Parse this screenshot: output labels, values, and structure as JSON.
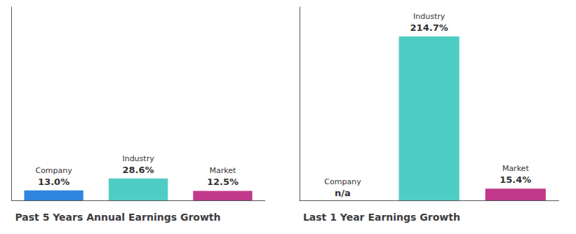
{
  "chart_data": [
    {
      "type": "bar",
      "title": "Past 5 Years Annual Earnings Growth",
      "categories": [
        "Company",
        "Industry",
        "Market"
      ],
      "values": [
        13.0,
        28.6,
        12.5
      ],
      "value_labels": [
        "13.0%",
        "28.6%",
        "12.5%"
      ],
      "colors": [
        "#2e86de",
        "#4ecdc4",
        "#c0398a"
      ],
      "ylim": [
        0,
        253.346
      ],
      "data_labels": true,
      "tick_labels": false,
      "grid": false
    },
    {
      "type": "bar",
      "title": "Last 1 Year Earnings Growth",
      "categories": [
        "Company",
        "Industry",
        "Market"
      ],
      "values": [
        null,
        214.7,
        15.4
      ],
      "value_labels": [
        "n/a",
        "214.7%",
        "15.4%"
      ],
      "colors": [
        "#2e86de",
        "#4ecdc4",
        "#c0398a"
      ],
      "ylim": [
        0,
        253.346
      ],
      "data_labels": true,
      "tick_labels": false,
      "grid": false
    }
  ]
}
